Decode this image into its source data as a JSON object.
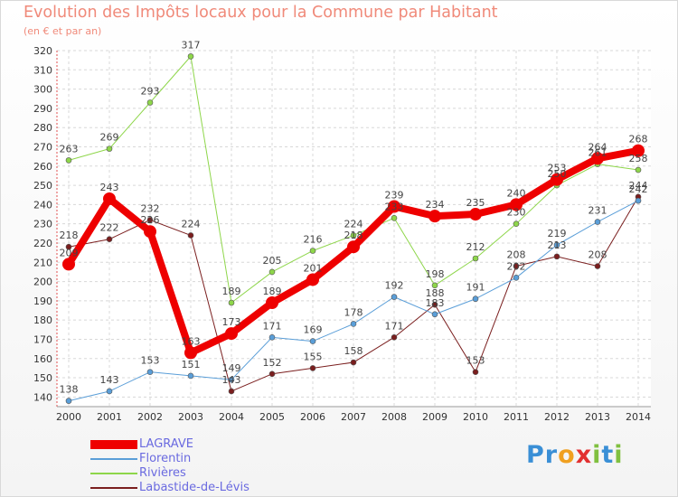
{
  "chart_data": {
    "type": "line",
    "title": "Evolution des Impôts locaux pour la Commune par Habitant",
    "subtitle": "(en € et par an)",
    "x": [
      "2000",
      "2001",
      "2002",
      "2003",
      "2004",
      "2005",
      "2006",
      "2007",
      "2008",
      "2009",
      "2010",
      "2011",
      "2012",
      "2013",
      "2014"
    ],
    "ylim": [
      135,
      320
    ],
    "yticks": [
      140,
      150,
      160,
      170,
      180,
      190,
      200,
      210,
      220,
      230,
      240,
      250,
      260,
      270,
      280,
      290,
      300,
      310,
      320
    ],
    "grid": true,
    "legend_position": "bottom-left",
    "series": [
      {
        "name": "LAGRAVE",
        "color": "#ee0000",
        "width": 8,
        "values": [
          209,
          243,
          226,
          163,
          173,
          189,
          201,
          218,
          239,
          234,
          235,
          240,
          253,
          264,
          268
        ]
      },
      {
        "name": "Florentin",
        "color": "#5a9ed8",
        "width": 1,
        "values": [
          138,
          143,
          153,
          151,
          149,
          171,
          169,
          178,
          192,
          183,
          191,
          202,
          219,
          231,
          242
        ]
      },
      {
        "name": "Rivières",
        "color": "#8ed64a",
        "width": 1,
        "values": [
          263,
          269,
          293,
          317,
          189,
          205,
          216,
          224,
          233,
          198,
          212,
          230,
          250,
          261,
          258
        ]
      },
      {
        "name": "Labastide-de-Lévis",
        "color": "#7a1e1e",
        "width": 1,
        "values": [
          218,
          222,
          232,
          224,
          143,
          152,
          155,
          158,
          171,
          188,
          153,
          208,
          213,
          208,
          244
        ]
      }
    ],
    "data_labels": [
      {
        "series": 0,
        "labels": [
          "209",
          "243",
          "226",
          "163",
          "173",
          "189",
          "201",
          "218",
          "239",
          "234",
          "235",
          "240",
          "253",
          "264",
          "268"
        ]
      },
      {
        "series": 1,
        "labels": [
          "138",
          "143",
          "153",
          "151",
          "149",
          "171",
          "169",
          "178",
          "192",
          "183",
          "191",
          "202",
          "219",
          "231",
          "242"
        ]
      },
      {
        "series": 2,
        "labels": [
          "263",
          "269",
          "293",
          "317",
          "189",
          "205",
          "216",
          "224",
          "233",
          "198",
          "212",
          "230",
          "250",
          "261",
          "258"
        ]
      },
      {
        "series": 3,
        "labels": [
          "218",
          "222",
          "232",
          "224",
          "143",
          "152",
          "155",
          "158",
          "171",
          "188",
          "153",
          "208",
          "213",
          "208",
          "244"
        ]
      }
    ]
  },
  "logo": {
    "letters": [
      "P",
      "r",
      "o",
      "x",
      "i",
      "t",
      "i"
    ],
    "colors": [
      "#3a8fd6",
      "#3a8fd6",
      "#f0a020",
      "#e23030",
      "#80c040",
      "#3a8fd6",
      "#80c040"
    ]
  }
}
